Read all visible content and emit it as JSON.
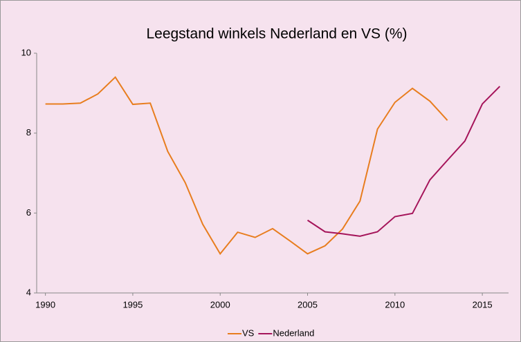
{
  "chart_data": {
    "type": "line",
    "title": "Leegstand winkels Nederland en VS (%)",
    "x": [
      1990,
      1991,
      1992,
      1993,
      1994,
      1995,
      1996,
      1997,
      1998,
      1999,
      2000,
      2001,
      2002,
      2003,
      2004,
      2005,
      2006,
      2007,
      2008,
      2009,
      2010,
      2011,
      2012,
      2013,
      2014,
      2015,
      2016
    ],
    "series": [
      {
        "name": "VS",
        "color": "#e87d1e",
        "values": [
          8.73,
          8.73,
          8.75,
          8.98,
          9.4,
          8.72,
          8.75,
          7.54,
          6.76,
          5.72,
          4.98,
          5.52,
          5.39,
          5.61,
          5.3,
          4.98,
          5.18,
          5.6,
          6.3,
          8.1,
          8.77,
          9.12,
          8.8,
          8.32,
          null,
          null,
          null
        ]
      },
      {
        "name": "Nederland",
        "color": "#a5145a",
        "values": [
          null,
          null,
          null,
          null,
          null,
          null,
          null,
          null,
          null,
          null,
          null,
          null,
          null,
          null,
          null,
          5.82,
          5.53,
          5.48,
          5.42,
          5.53,
          5.91,
          5.99,
          6.83,
          7.32,
          7.8,
          8.73,
          9.17
        ]
      }
    ],
    "xlim": [
      1989.5,
      2016.5
    ],
    "xticks": [
      1990,
      1995,
      2000,
      2005,
      2010,
      2015
    ],
    "ylim": [
      4,
      10
    ],
    "yticks": [
      4,
      6,
      8,
      10
    ],
    "grid": false,
    "legend": "bottom"
  }
}
